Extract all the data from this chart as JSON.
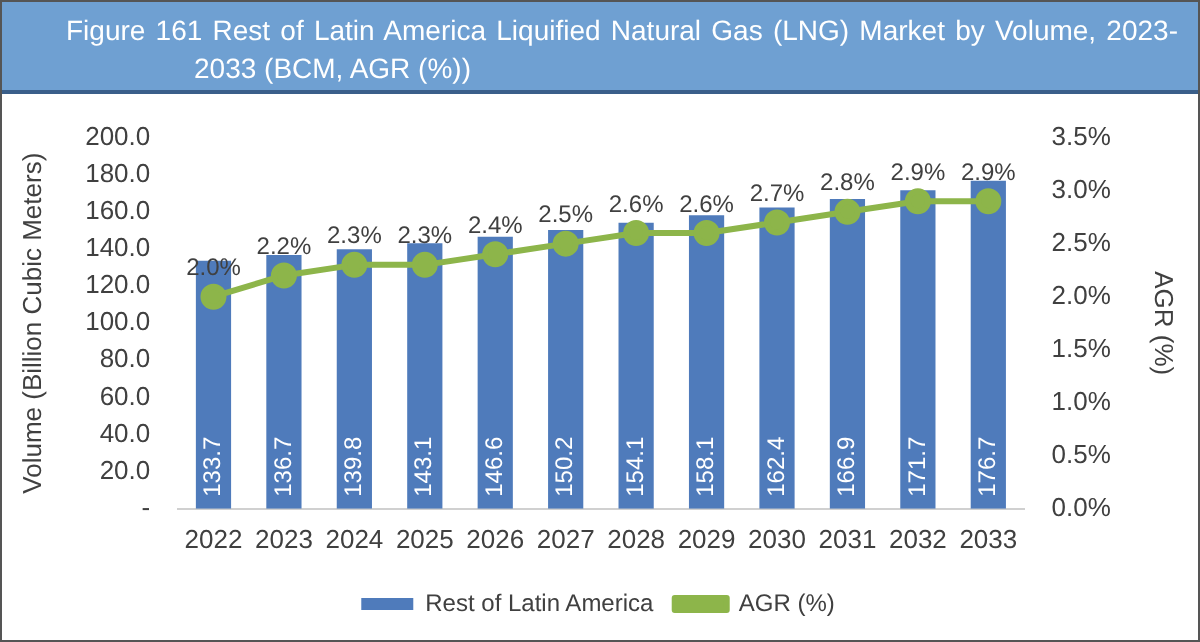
{
  "chart_data": {
    "type": "bar",
    "title": "Figure 161 Rest of Latin America Liquified Natural Gas (LNG) Market by Volume, 2023-2033 (BCM, AGR (%))",
    "ylabel": "Volume (Billion Cubic Meters)",
    "y2label": "AGR (%)",
    "categories": [
      "2022",
      "2023",
      "2024",
      "2025",
      "2026",
      "2027",
      "2028",
      "2029",
      "2030",
      "2031",
      "2032",
      "2033"
    ],
    "series": [
      {
        "name": "Rest of Latin America",
        "color": "#4f7bbb",
        "values": [
          133.7,
          136.7,
          139.8,
          143.1,
          146.6,
          150.2,
          154.1,
          158.1,
          162.4,
          166.9,
          171.7,
          176.7
        ],
        "value_labels": [
          "133.7",
          "136.7",
          "139.8",
          "143.1",
          "146.6",
          "150.2",
          "154.1",
          "158.1",
          "162.4",
          "166.9",
          "171.7",
          "176.7"
        ]
      },
      {
        "name": "AGR (%)",
        "type": "line",
        "axis": "y2",
        "color": "#8db54a",
        "marker": "circle",
        "values": [
          2.0,
          2.2,
          2.3,
          2.3,
          2.4,
          2.5,
          2.6,
          2.6,
          2.7,
          2.8,
          2.9,
          2.9
        ],
        "value_labels": [
          "2.0%",
          "2.2%",
          "2.3%",
          "2.3%",
          "2.4%",
          "2.5%",
          "2.6%",
          "2.6%",
          "2.7%",
          "2.8%",
          "2.9%",
          "2.9%"
        ]
      }
    ],
    "ylim": [
      0,
      200
    ],
    "yticks": [
      {
        "value": 0,
        "label": "-"
      },
      {
        "value": 20,
        "label": "20.0"
      },
      {
        "value": 40,
        "label": "40.0"
      },
      {
        "value": 60,
        "label": "60.0"
      },
      {
        "value": 80,
        "label": "80.0"
      },
      {
        "value": 100,
        "label": "100.0"
      },
      {
        "value": 120,
        "label": "120.0"
      },
      {
        "value": 140,
        "label": "140.0"
      },
      {
        "value": 160,
        "label": "160.0"
      },
      {
        "value": 180,
        "label": "180.0"
      },
      {
        "value": 200,
        "label": "200.0"
      }
    ],
    "y2lim": [
      0,
      3.5
    ],
    "y2ticks": [
      {
        "value": 0,
        "label": "0.0%"
      },
      {
        "value": 0.5,
        "label": "0.5%"
      },
      {
        "value": 1,
        "label": "1.0%"
      },
      {
        "value": 1.5,
        "label": "1.5%"
      },
      {
        "value": 2,
        "label": "2.0%"
      },
      {
        "value": 2.5,
        "label": "2.5%"
      },
      {
        "value": 3,
        "label": "3.0%"
      },
      {
        "value": 3.5,
        "label": "3.5%"
      }
    ],
    "grid": false,
    "legend": "bottom"
  }
}
